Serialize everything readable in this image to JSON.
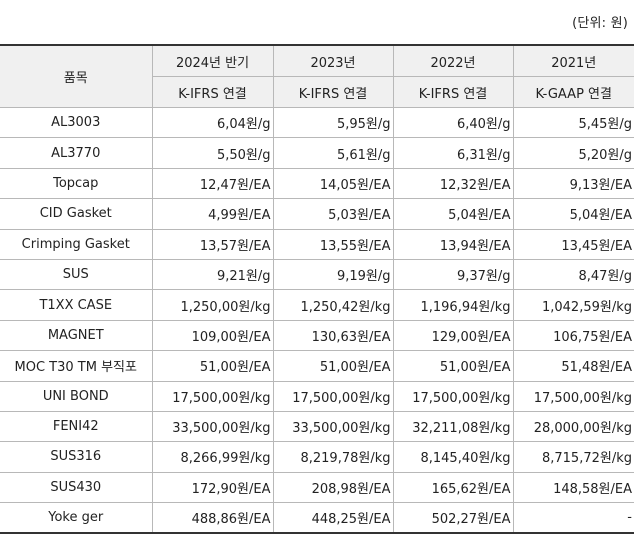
{
  "unit_note": "(단위: 원)",
  "header": {
    "item": "품목",
    "periods": [
      {
        "period": "2024년 반기",
        "standard": "K-IFRS 연결"
      },
      {
        "period": "2023년",
        "standard": "K-IFRS 연결"
      },
      {
        "period": "2022년",
        "standard": "K-IFRS 연결"
      },
      {
        "period": "2021년",
        "standard": "K-GAAP 연결"
      }
    ]
  },
  "rows": [
    {
      "item": "AL3003",
      "values": [
        "6,04원/g",
        "5,95원/g",
        "6,40원/g",
        "5,45원/g"
      ]
    },
    {
      "item": "AL3770",
      "values": [
        "5,50원/g",
        "5,61원/g",
        "6,31원/g",
        "5,20원/g"
      ]
    },
    {
      "item": "Topcap",
      "values": [
        "12,47원/EA",
        "14,05원/EA",
        "12,32원/EA",
        "9,13원/EA"
      ]
    },
    {
      "item": "CID Gasket",
      "values": [
        "4,99원/EA",
        "5,03원/EA",
        "5,04원/EA",
        "5,04원/EA"
      ]
    },
    {
      "item": "Crimping Gasket",
      "values": [
        "13,57원/EA",
        "13,55원/EA",
        "13,94원/EA",
        "13,45원/EA"
      ]
    },
    {
      "item": "SUS",
      "values": [
        "9,21원/g",
        "9,19원/g",
        "9,37원/g",
        "8,47원/g"
      ]
    },
    {
      "item": "T1XX CASE",
      "values": [
        "1,250,00원/kg",
        "1,250,42원/kg",
        "1,196,94원/kg",
        "1,042,59원/kg"
      ]
    },
    {
      "item": "MAGNET",
      "values": [
        "109,00원/EA",
        "130,63원/EA",
        "129,00원/EA",
        "106,75원/EA"
      ]
    },
    {
      "item": "MOC T30 TM 부직포",
      "values": [
        "51,00원/EA",
        "51,00원/EA",
        "51,00원/EA",
        "51,48원/EA"
      ]
    },
    {
      "item": "UNI BOND",
      "values": [
        "17,500,00원/kg",
        "17,500,00원/kg",
        "17,500,00원/kg",
        "17,500,00원/kg"
      ]
    },
    {
      "item": "FENI42",
      "values": [
        "33,500,00원/kg",
        "33,500,00원/kg",
        "32,211,08원/kg",
        "28,000,00원/kg"
      ]
    },
    {
      "item": "SUS316",
      "values": [
        "8,266,99원/kg",
        "8,219,78원/kg",
        "8,145,40원/kg",
        "8,715,72원/kg"
      ]
    },
    {
      "item": "SUS430",
      "values": [
        "172,90원/EA",
        "208,98원/EA",
        "165,62원/EA",
        "148,58원/EA"
      ]
    },
    {
      "item": "Yoke ger",
      "values": [
        "488,86원/EA",
        "448,25원/EA",
        "502,27원/EA",
        "-"
      ]
    }
  ]
}
